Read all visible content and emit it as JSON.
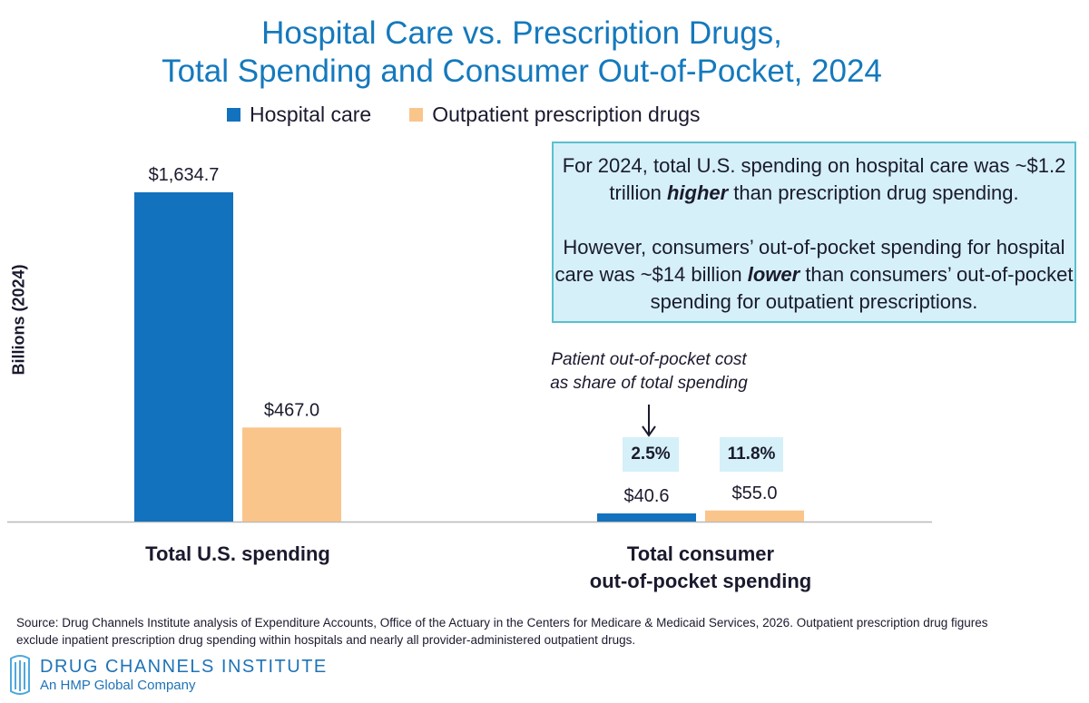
{
  "title": {
    "line1": "Hospital Care vs. Prescription Drugs,",
    "line2": "Total Spending and Consumer Out-of-Pocket, 2024"
  },
  "legend": [
    {
      "label": "Hospital care",
      "color": "#1272be"
    },
    {
      "label": "Outpatient prescription drugs",
      "color": "#fac58b"
    }
  ],
  "callout": {
    "p1_a": "For 2024, total U.S. spending on hospital care was ~$1.2 trillion ",
    "p1_em": "higher",
    "p1_b": " than prescription drug spending.",
    "p2_a": "However, consumers’ out-of-pocket spending for hospital care was ~$14 billion ",
    "p2_em": "lower",
    "p2_b": " than consumers’ out-of-pocket spending for outpatient prescriptions."
  },
  "annotation": {
    "line1": "Patient out-of-pocket cost",
    "line2": "as share of total spending"
  },
  "percentages": [
    "2.5%",
    "11.8%"
  ],
  "source": "Source: Drug Channels Institute analysis of  Expenditure Accounts, Office of the Actuary in the Centers for Medicare & Medicaid Services, 2026. Outpatient prescription drug figures exclude inpatient prescription drug spending within hospitals and nearly all provider-administered outpatient drugs.",
  "logo": {
    "name": "DRUG CHANNELS INSTITUTE",
    "sub": "An HMP Global Company"
  },
  "chart_data": {
    "type": "bar",
    "title": "Hospital Care vs. Prescription Drugs, Total Spending and Consumer Out-of-Pocket, 2024",
    "ylabel": "Billions (2024)",
    "xlabel": "",
    "categories": [
      [
        "Total U.S. spending"
      ],
      [
        "Total consumer",
        "out-of-pocket spending"
      ]
    ],
    "series": [
      {
        "name": "Hospital care",
        "values": [
          1634.7,
          40.6
        ],
        "labels": [
          "$1,634.7",
          "$40.6"
        ],
        "color": "#1272be"
      },
      {
        "name": "Outpatient prescription drugs",
        "values": [
          467.0,
          55.0
        ],
        "labels": [
          "$467.0",
          "$55.0"
        ],
        "color": "#fac58b"
      }
    ],
    "ylim": [
      0,
      1634.7
    ]
  }
}
